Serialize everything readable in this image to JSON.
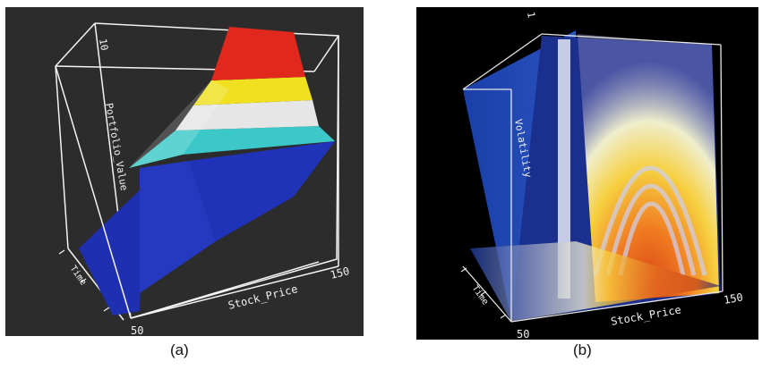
{
  "panels": [
    {
      "id": "a",
      "caption": "(a)",
      "vertical_axis_label": "Portfolio_Value",
      "vertical_axis_top_tick": "10",
      "horizontal_axis_label": "Stock_Price",
      "horizontal_axis_start": "50",
      "horizontal_axis_end": "150",
      "depth_axis_label": "Time"
    },
    {
      "id": "b",
      "caption": "(b)",
      "vertical_axis_label": "Volatility",
      "vertical_axis_top_tick": "1",
      "horizontal_axis_label": "Stock_Price",
      "horizontal_axis_start": "50",
      "horizontal_axis_end": "150",
      "depth_axis_label": "Time"
    }
  ],
  "colors": {
    "panel_a_background": "#2c2c2c",
    "panel_b_background": "#000000",
    "surface_red": "#e0281c",
    "surface_yellow": "#f0e020",
    "surface_white": "#e8e8e8",
    "surface_cyan": "#3ac8c8",
    "surface_blue": "#2030b8"
  }
}
